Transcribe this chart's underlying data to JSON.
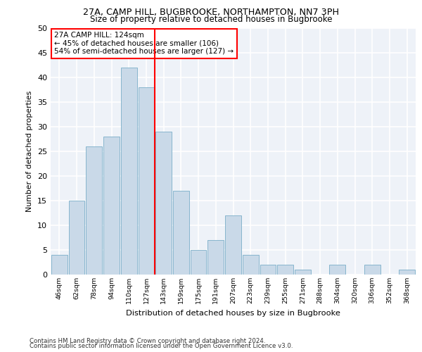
{
  "title1": "27A, CAMP HILL, BUGBROOKE, NORTHAMPTON, NN7 3PH",
  "title2": "Size of property relative to detached houses in Bugbrooke",
  "xlabel": "Distribution of detached houses by size in Bugbrooke",
  "ylabel": "Number of detached properties",
  "bar_labels": [
    "46sqm",
    "62sqm",
    "78sqm",
    "94sqm",
    "110sqm",
    "127sqm",
    "143sqm",
    "159sqm",
    "175sqm",
    "191sqm",
    "207sqm",
    "223sqm",
    "239sqm",
    "255sqm",
    "271sqm",
    "288sqm",
    "304sqm",
    "320sqm",
    "336sqm",
    "352sqm",
    "368sqm"
  ],
  "bar_values": [
    4,
    15,
    26,
    28,
    42,
    38,
    29,
    17,
    5,
    7,
    12,
    4,
    2,
    2,
    1,
    0,
    2,
    0,
    2,
    0,
    1
  ],
  "bar_color": "#c9d9e8",
  "bar_edge_color": "#7aaec8",
  "vline_x_index": 5,
  "vline_color": "red",
  "annotation_text": "27A CAMP HILL: 124sqm\n← 45% of detached houses are smaller (106)\n54% of semi-detached houses are larger (127) →",
  "annotation_box_color": "white",
  "annotation_box_edge_color": "red",
  "ylim": [
    0,
    50
  ],
  "yticks": [
    0,
    5,
    10,
    15,
    20,
    25,
    30,
    35,
    40,
    45,
    50
  ],
  "background_color": "#eef2f8",
  "grid_color": "white",
  "footer1": "Contains HM Land Registry data © Crown copyright and database right 2024.",
  "footer2": "Contains public sector information licensed under the Open Government Licence v3.0."
}
